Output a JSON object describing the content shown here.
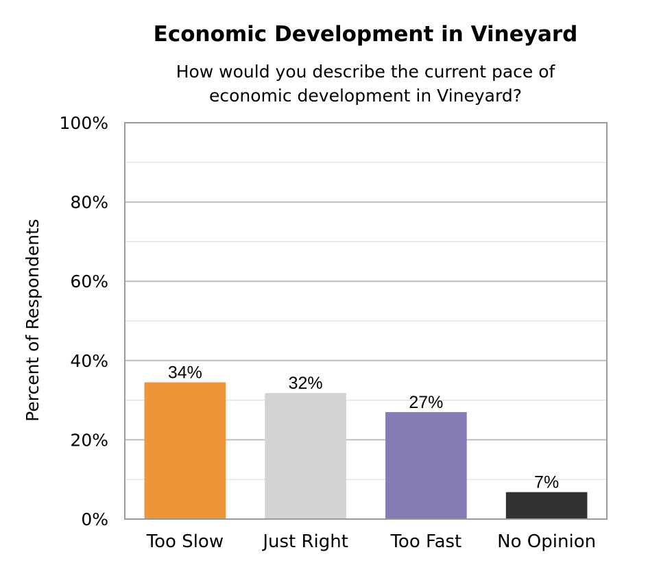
{
  "chart_data": {
    "type": "bar",
    "title": "Economic Development in Vineyard",
    "subtitle_lines": [
      "How would you describe the current pace of",
      "economic development in Vineyard?"
    ],
    "ylabel": "Percent of Respondents",
    "xlabel": "",
    "ylim": [
      0,
      100
    ],
    "y_ticks": [
      0,
      20,
      40,
      60,
      80,
      100
    ],
    "y_tick_labels": [
      "0%",
      "20%",
      "40%",
      "60%",
      "80%",
      "100%"
    ],
    "minor_gridlines": [
      10,
      30,
      50,
      70,
      90
    ],
    "grid": true,
    "legend": "none",
    "categories": [
      "Too Slow",
      "Just Right",
      "Too Fast",
      "No Opinion"
    ],
    "values": [
      34.5,
      31.8,
      27,
      6.8
    ],
    "data_labels": [
      "34%",
      "32%",
      "27%",
      "7%"
    ],
    "colors": [
      "#ED9537",
      "#D3D3D3",
      "#877BB5",
      "#323232"
    ],
    "grid_color": "#bfbfbf",
    "minor_grid_color": "#dedede",
    "border_color": "#9a9a9a"
  }
}
